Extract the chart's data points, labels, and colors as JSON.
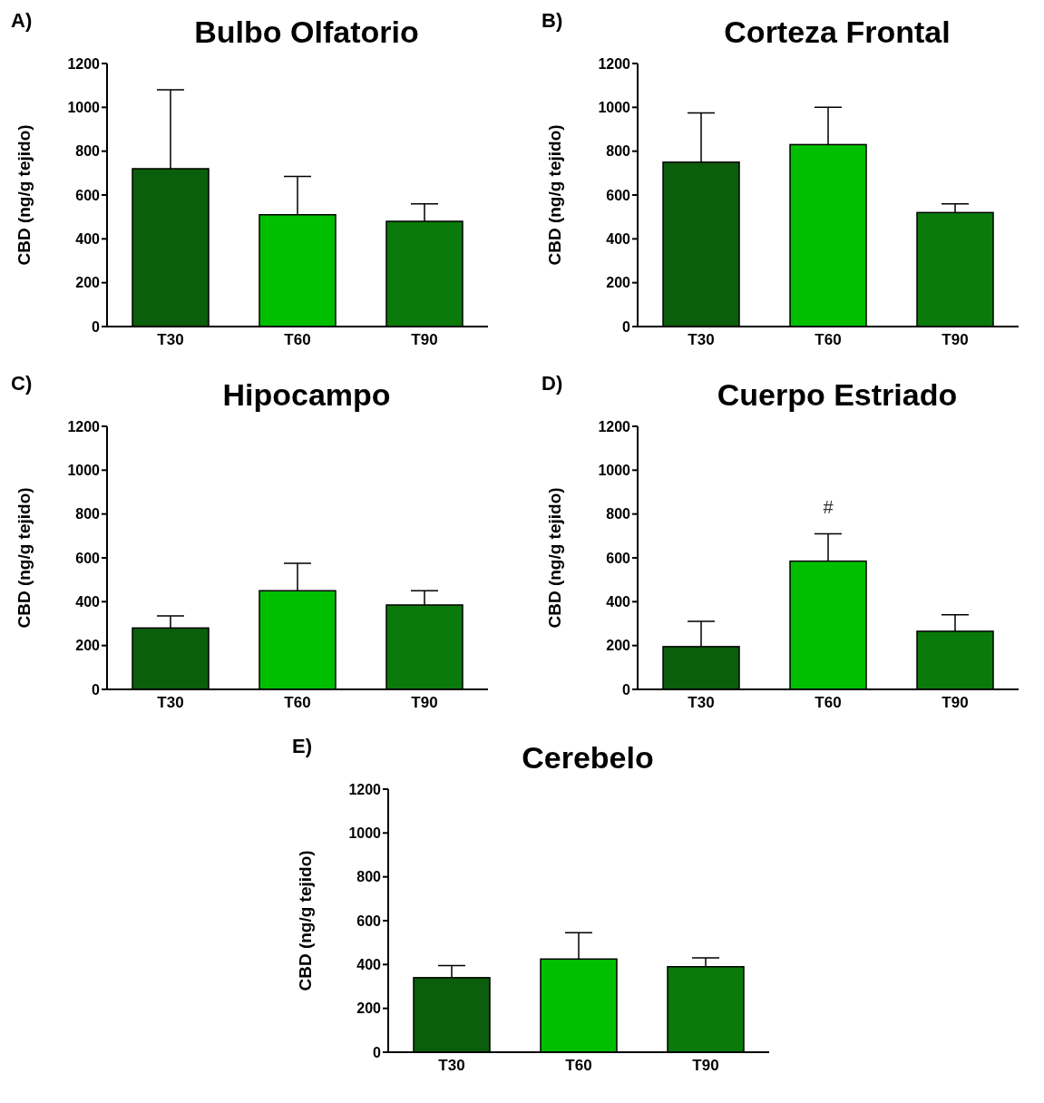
{
  "chart_data": [
    {
      "type": "bar",
      "title": "Bulbo Olfatorio",
      "ylabel": "CBD (ng/g tejido)",
      "annotations": [
        "A)"
      ],
      "categories": [
        "T30",
        "T60",
        "T90"
      ],
      "values": [
        720,
        510,
        480
      ],
      "errors": [
        [
          720,
          1080
        ],
        [
          510,
          685
        ],
        [
          480,
          560
        ]
      ],
      "colors": [
        "#0b5e0b",
        "#00bf00",
        "#0a7a0a"
      ],
      "ylim": [
        0,
        1200
      ],
      "yticks": [
        0,
        200,
        400,
        600,
        800,
        1000,
        1200
      ],
      "grid": false,
      "legend": false
    },
    {
      "type": "bar",
      "title": "Corteza Frontal",
      "ylabel": "CBD (ng/g tejido)",
      "annotations": [
        "B)"
      ],
      "categories": [
        "T30",
        "T60",
        "T90"
      ],
      "values": [
        750,
        830,
        520
      ],
      "errors": [
        [
          750,
          975
        ],
        [
          830,
          1000
        ],
        [
          520,
          560
        ]
      ],
      "colors": [
        "#0b5e0b",
        "#00bf00",
        "#0a7a0a"
      ],
      "ylim": [
        0,
        1200
      ],
      "yticks": [
        0,
        200,
        400,
        600,
        800,
        1000,
        1200
      ],
      "grid": false,
      "legend": false
    },
    {
      "type": "bar",
      "title": "Hipocampo",
      "ylabel": "CBD (ng/g tejido)",
      "annotations": [
        "C)"
      ],
      "categories": [
        "T30",
        "T60",
        "T90"
      ],
      "values": [
        280,
        450,
        385
      ],
      "errors": [
        [
          280,
          335
        ],
        [
          450,
          575
        ],
        [
          385,
          450
        ]
      ],
      "colors": [
        "#0b5e0b",
        "#00bf00",
        "#0a7a0a"
      ],
      "ylim": [
        0,
        1200
      ],
      "yticks": [
        0,
        200,
        400,
        600,
        800,
        1000,
        1200
      ],
      "grid": false,
      "legend": false
    },
    {
      "type": "bar",
      "title": "Cuerpo Estriado",
      "ylabel": "CBD (ng/g tejido)",
      "annotations": [
        "D)",
        {
          "text": "#",
          "x": "T60",
          "y": 710
        }
      ],
      "categories": [
        "T30",
        "T60",
        "T90"
      ],
      "values": [
        195,
        585,
        265
      ],
      "errors": [
        [
          195,
          310
        ],
        [
          585,
          710
        ],
        [
          265,
          340
        ]
      ],
      "colors": [
        "#0b5e0b",
        "#00bf00",
        "#0a7a0a"
      ],
      "ylim": [
        0,
        1200
      ],
      "yticks": [
        0,
        200,
        400,
        600,
        800,
        1000,
        1200
      ],
      "grid": false,
      "legend": false
    },
    {
      "type": "bar",
      "title": "Cerebelo",
      "ylabel": "CBD (ng/g tejido)",
      "annotations": [
        "E)"
      ],
      "categories": [
        "T30",
        "T60",
        "T90"
      ],
      "values": [
        340,
        425,
        390
      ],
      "errors": [
        [
          340,
          395
        ],
        [
          425,
          545
        ],
        [
          390,
          430
        ]
      ],
      "colors": [
        "#0b5e0b",
        "#00bf00",
        "#0a7a0a"
      ],
      "ylim": [
        0,
        1200
      ],
      "yticks": [
        0,
        200,
        400,
        600,
        800,
        1000,
        1200
      ],
      "grid": false,
      "legend": false
    }
  ]
}
